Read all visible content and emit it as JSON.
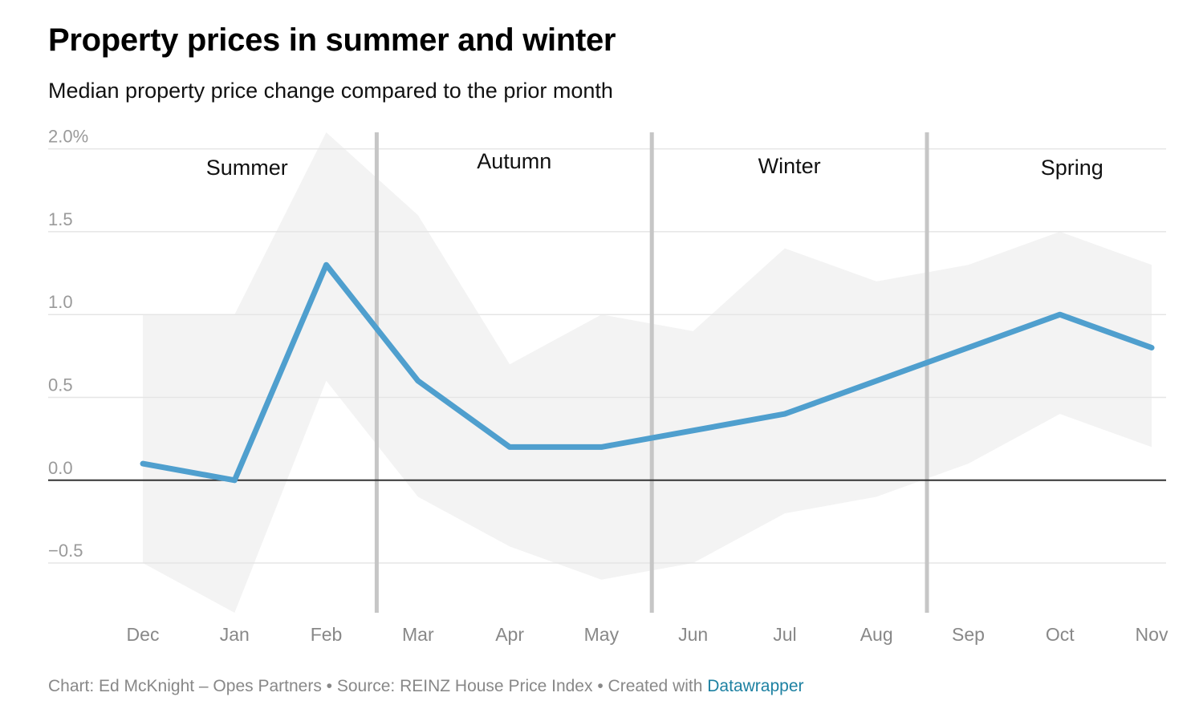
{
  "title": "Property prices in summer and winter",
  "subtitle": "Median property price change compared to the prior month",
  "footer": {
    "chart_credit": "Chart: Ed McKnight – Opes Partners",
    "separator": " • ",
    "source": "Source: REINZ House Price Index",
    "created_with": "Created with ",
    "tool": "Datawrapper"
  },
  "colors": {
    "line": "#4f9fce",
    "band": "#f3f3f3",
    "grid": "#e5e5e5",
    "axis_text": "#9a9a9a",
    "divider": "#c6c6c6",
    "baseline": "#333333"
  },
  "chart_data": {
    "type": "line",
    "title": "Property prices in summer and winter",
    "subtitle": "Median property price change compared to the prior month",
    "categories": [
      "Dec",
      "Jan",
      "Feb",
      "Mar",
      "Apr",
      "May",
      "Jun",
      "Jul",
      "Aug",
      "Sep",
      "Oct",
      "Nov"
    ],
    "series": [
      {
        "name": "Median",
        "values": [
          0.1,
          0.0,
          1.3,
          0.6,
          0.2,
          0.2,
          0.3,
          0.4,
          0.6,
          0.8,
          1.0,
          0.8
        ]
      }
    ],
    "range_band": {
      "upper": [
        1.0,
        1.0,
        2.1,
        1.6,
        0.7,
        1.0,
        0.9,
        1.4,
        1.2,
        1.3,
        1.5,
        1.3
      ],
      "lower": [
        -0.5,
        -0.8,
        0.6,
        -0.1,
        -0.4,
        -0.6,
        -0.5,
        -0.2,
        -0.1,
        0.1,
        0.4,
        0.2
      ]
    },
    "ylim": [
      -0.8,
      2.1
    ],
    "yticks": [
      {
        "value": 2.0,
        "label": "2.0%"
      },
      {
        "value": 1.5,
        "label": "1.5"
      },
      {
        "value": 1.0,
        "label": "1.0"
      },
      {
        "value": 0.5,
        "label": "0.5"
      },
      {
        "value": 0.0,
        "label": "0.0"
      },
      {
        "value": -0.5,
        "label": "−0.5"
      }
    ],
    "season_dividers_after": [
      "Feb",
      "May",
      "Aug"
    ],
    "seasons": [
      {
        "label": "Summer",
        "months": [
          "Dec",
          "Jan",
          "Feb"
        ]
      },
      {
        "label": "Autumn",
        "months": [
          "Mar",
          "Apr",
          "May"
        ]
      },
      {
        "label": "Winter",
        "months": [
          "Jun",
          "Jul",
          "Aug"
        ]
      },
      {
        "label": "Spring",
        "months": [
          "Sep",
          "Oct",
          "Nov"
        ]
      }
    ],
    "grid": true,
    "xlabel": "",
    "ylabel": ""
  }
}
